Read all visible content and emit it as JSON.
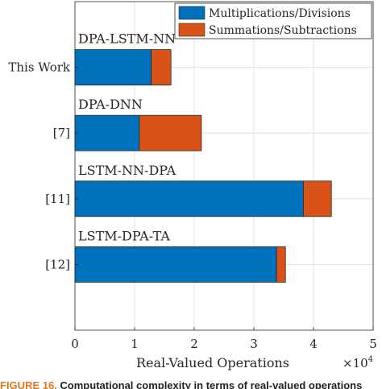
{
  "chart_data": {
    "type": "bar",
    "orientation": "horizontal",
    "stacked": true,
    "categories": [
      "This Work",
      "[7]",
      "[11]",
      "[12]"
    ],
    "bar_labels": [
      "DPA-LSTM-NN",
      "DPA-DNN",
      "LSTM-NN-DPA",
      "LSTM-DPA-TA"
    ],
    "series": [
      {
        "name": "Multiplications/Divisions",
        "color": "#0072BD",
        "values": [
          12800,
          10800,
          38300,
          33800
        ]
      },
      {
        "name": "Summations/Subtractions",
        "color": "#D95319",
        "values": [
          3300,
          10400,
          4700,
          1500
        ]
      }
    ],
    "xlabel": "Real-Valued Operations",
    "x_multiplier": "×10",
    "x_multiplier_exp": "4",
    "xlim": [
      0,
      50000
    ],
    "xticks": [
      0,
      10000,
      20000,
      30000,
      40000,
      50000
    ],
    "xtick_labels": [
      "0",
      "1",
      "2",
      "3",
      "4",
      "5"
    ],
    "grid": true,
    "legend_position": "top-right"
  },
  "caption": {
    "figure": "FIGURE 16.",
    "text": "Computational complexity in terms of real-valued operations"
  }
}
